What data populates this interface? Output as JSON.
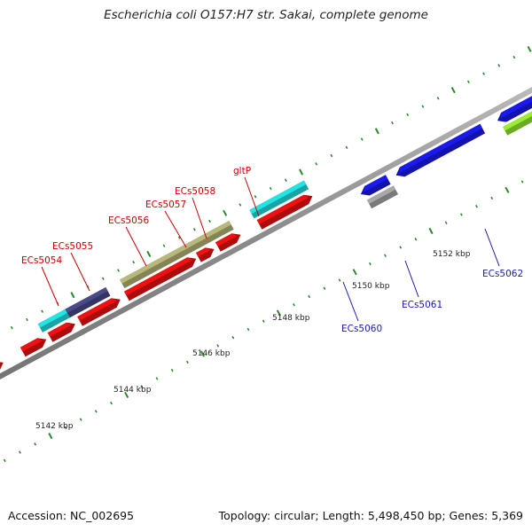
{
  "title": "Escherichia coli O157:H7 str. Sakai, complete genome",
  "footer": {
    "accession": "Accession: NC_002695",
    "stats": "Topology: circular; Length: 5,498,450 bp; Genes: 5,369"
  },
  "colors": {
    "forward_cds": "#ee1111",
    "forward_label": "#cc0000",
    "reverse_cds": "#1a1aee",
    "reverse_label": "#1a1aaa",
    "trna": "#22e4e4",
    "other": "#b8b87a",
    "navy": "#4a4a8a",
    "lime": "#99ee33",
    "grey": "#a8a8a8",
    "backbone": "#909090",
    "tick": "#2a8a2a"
  },
  "tick_labels": [
    "5142 kbp",
    "5144 kbp",
    "5146 kbp",
    "5148 kbp",
    "5150 kbp",
    "5152 kbp"
  ],
  "gene_labels": {
    "forward": [
      "ECs5054",
      "ECs5055",
      "ECs5056",
      "ECs5057",
      "ECs5058",
      "gltP"
    ],
    "reverse": [
      "ECs5060",
      "ECs5061",
      "ECs5062"
    ]
  }
}
